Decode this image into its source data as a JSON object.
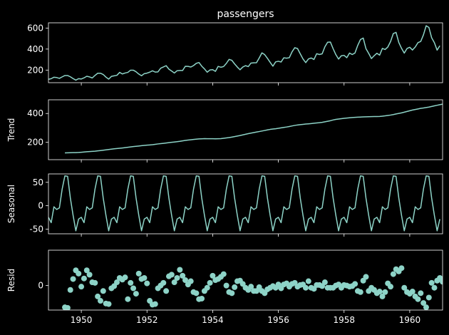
{
  "figure": {
    "background": "#000000",
    "foreground": "#ffffff",
    "series_color": "#8dd3c7"
  },
  "chart_data": [
    {
      "type": "line",
      "title": "passengers",
      "ylabel": "",
      "xlim": [
        1949,
        1961
      ],
      "ylim": [
        80,
        650
      ],
      "yticks": [
        200,
        400,
        600
      ],
      "xticks": [
        1950,
        1952,
        1954,
        1956,
        1958,
        1960
      ],
      "show_xtick_labels": false,
      "x_start": 1949.0,
      "x_step": 0.083333,
      "series": [
        {
          "values": [
            112,
            118,
            132,
            129,
            121,
            135,
            148,
            148,
            136,
            119,
            104,
            118,
            115,
            126,
            141,
            135,
            125,
            149,
            170,
            170,
            158,
            133,
            114,
            140,
            145,
            150,
            178,
            163,
            172,
            178,
            199,
            199,
            184,
            162,
            146,
            166,
            171,
            180,
            193,
            181,
            183,
            218,
            230,
            242,
            209,
            191,
            172,
            194,
            196,
            196,
            236,
            235,
            229,
            243,
            264,
            272,
            237,
            211,
            180,
            201,
            204,
            188,
            235,
            227,
            234,
            264,
            302,
            293,
            259,
            229,
            203,
            229,
            242,
            233,
            267,
            269,
            270,
            315,
            364,
            347,
            312,
            274,
            237,
            278,
            284,
            277,
            317,
            313,
            318,
            374,
            413,
            405,
            355,
            306,
            271,
            306,
            315,
            301,
            356,
            348,
            355,
            422,
            465,
            467,
            404,
            347,
            305,
            336,
            340,
            318,
            362,
            348,
            363,
            435,
            491,
            505,
            404,
            359,
            310,
            337,
            360,
            342,
            406,
            396,
            420,
            472,
            548,
            559,
            463,
            407,
            362,
            405,
            417,
            391,
            419,
            461,
            472,
            535,
            622,
            606,
            508,
            461,
            390,
            432
          ]
        }
      ]
    },
    {
      "type": "line",
      "title": "",
      "ylabel": "Trend",
      "xlim": [
        1949,
        1961
      ],
      "ylim": [
        80,
        495
      ],
      "yticks": [
        200,
        400
      ],
      "xticks": [
        1950,
        1952,
        1954,
        1956,
        1958,
        1960
      ],
      "show_xtick_labels": false,
      "x_start": 1949.5,
      "x_step": 0.083333,
      "series": [
        {
          "values": [
            126.8,
            127.3,
            127.9,
            128.6,
            129.0,
            129.8,
            131.3,
            133.1,
            134.9,
            136.4,
            137.4,
            138.8,
            140.9,
            143.2,
            145.7,
            148.0,
            150.5,
            152.8,
            155.2,
            157.1,
            159.0,
            161.1,
            163.5,
            166.0,
            168.4,
            170.5,
            172.5,
            174.5,
            176.8,
            178.8,
            180.5,
            182.1,
            184.0,
            186.4,
            189.0,
            191.0,
            193.1,
            195.4,
            197.8,
            200.4,
            202.5,
            204.5,
            207.0,
            210.4,
            213.4,
            215.8,
            218.0,
            220.0,
            222.0,
            223.6,
            224.6,
            225.5,
            225.3,
            225.3,
            224.9,
            224.2,
            225.0,
            225.9,
            228.0,
            230.5,
            233.0,
            236.4,
            240.0,
            243.5,
            247.3,
            251.6,
            256.0,
            260.2,
            264.2,
            267.8,
            271.3,
            274.8,
            278.5,
            282.3,
            286.2,
            289.7,
            292.2,
            294.5,
            297.3,
            300.5,
            303.4,
            306.3,
            309.9,
            313.7,
            317.5,
            320.5,
            322.8,
            324.8,
            326.9,
            328.5,
            330.3,
            332.4,
            334.3,
            336.1,
            338.7,
            342.3,
            346.1,
            350.1,
            355.2,
            359.2,
            361.6,
            364.0,
            366.4,
            368.6,
            370.2,
            372.1,
            373.6,
            374.5,
            375.4,
            376.4,
            377.1,
            377.7,
            378.4,
            378.6,
            378.9,
            379.6,
            381.6,
            383.8,
            386.5,
            389.1,
            392.5,
            396.7,
            400.4,
            404.4,
            409.0,
            414.0,
            419.2,
            423.9,
            427.8,
            431.6,
            435.5,
            438.0,
            441.1,
            444.5,
            448.5,
            452.9,
            457.0,
            460.8,
            464.8,
            469.3,
            473.3,
            475.4
          ]
        }
      ]
    },
    {
      "type": "line",
      "title": "",
      "ylabel": "Seasonal",
      "xlim": [
        1949,
        1961
      ],
      "ylim": [
        -60,
        68
      ],
      "yticks": [
        -50,
        0,
        50
      ],
      "xticks": [
        1950,
        1952,
        1954,
        1956,
        1958,
        1960
      ],
      "show_xtick_labels": false,
      "x_start": 1949.0,
      "x_step": 0.083333,
      "period": 12,
      "series": [
        {
          "name": "",
          "values_one_period": [
            -24.75,
            -36.19,
            -2.24,
            -8.04,
            -4.51,
            35.4,
            63.83,
            62.82,
            16.52,
            -20.64,
            -53.59,
            -28.62
          ]
        }
      ]
    },
    {
      "type": "scatter",
      "title": "",
      "ylabel": "Resid",
      "xlim": [
        1949,
        1961
      ],
      "ylim": [
        -45,
        65
      ],
      "yticks": [
        0
      ],
      "xticks": [
        1950,
        1952,
        1954,
        1956,
        1958,
        1960
      ],
      "xtick_labels": [
        "1950",
        "1952",
        "1954",
        "1956",
        "1958",
        "1960"
      ],
      "show_xtick_labels": true,
      "x_start": 1949.5,
      "x_step": 0.083333,
      "series": [
        {
          "values": [
            -40,
            -41,
            -8,
            12,
            28,
            22,
            -2,
            13,
            28,
            20,
            6,
            5,
            -20,
            -28,
            -10,
            -33,
            -34,
            -5,
            -1,
            6,
            14,
            11,
            15,
            -25,
            5,
            -5,
            -15,
            22,
            12,
            14,
            4,
            -28,
            -35,
            -34,
            -5,
            0,
            5,
            -10,
            17,
            20,
            6,
            14,
            29,
            18,
            10,
            2,
            8,
            -12,
            -14,
            -25,
            -24,
            -10,
            -4,
            5,
            18,
            10,
            12,
            16,
            21,
            0,
            -12,
            -14,
            -3,
            8,
            9,
            3,
            -4,
            -8,
            -2,
            -10,
            -10,
            -3,
            -10,
            -14,
            -7,
            -4,
            -1,
            -4,
            2,
            -5,
            2,
            4,
            -2,
            3,
            5,
            -2,
            1,
            2,
            -4,
            8,
            -4,
            -6,
            1,
            1,
            -1,
            6,
            -4,
            -4,
            -4,
            0,
            2,
            -4,
            1,
            0,
            -2,
            -1,
            3,
            -10,
            -12,
            9,
            16,
            -10,
            -4,
            -8,
            -14,
            -11,
            -20,
            -12,
            4,
            -2,
            21,
            30,
            26,
            32,
            -4,
            -12,
            -15,
            -11,
            -20,
            -25,
            -14,
            -32,
            -40,
            -22,
            5,
            -4,
            9,
            14,
            7,
            -4,
            -12,
            -20
          ]
        }
      ]
    }
  ]
}
